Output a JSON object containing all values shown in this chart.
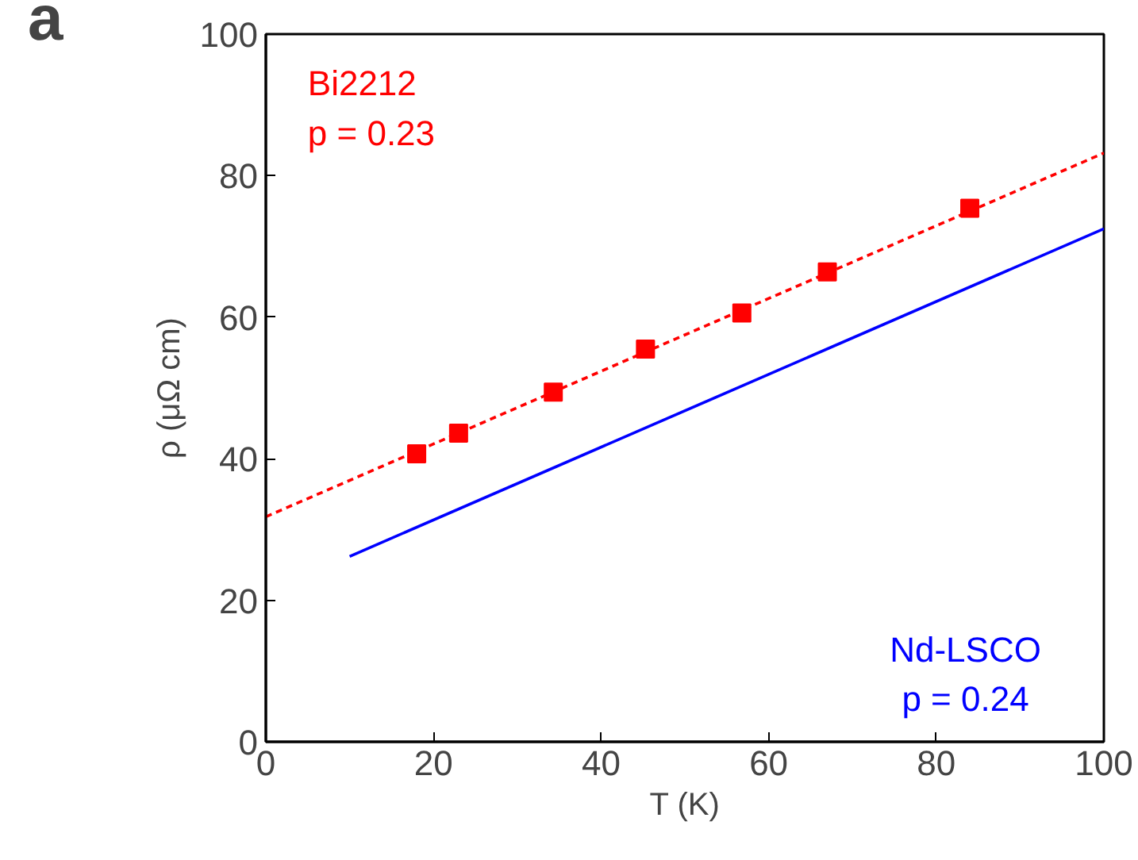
{
  "chart_data": {
    "type": "scatter",
    "xlabel": "T (K)",
    "ylabel": "ρ (μΩ cm)",
    "annotations": [
      "a"
    ],
    "series": [
      {
        "name": "Bi2212\np = 0.23",
        "color": "#ff0000",
        "marker": "square",
        "x": [
          18,
          23,
          34.3,
          45.3,
          56.8,
          67,
          84
        ],
        "values": [
          40.7,
          43.6,
          49.4,
          55.5,
          60.6,
          66.4,
          75.4
        ]
      },
      {
        "type": "line",
        "color": "#ff0000",
        "line_style": "dashed",
        "x": [
          0,
          100
        ],
        "values": [
          31.8,
          83.2
        ]
      },
      {
        "name": "Nd-LSCO\np = 0.24",
        "type": "line",
        "color": "#0000ff",
        "line_style": "solid",
        "x": [
          10,
          100
        ],
        "values": [
          26.2,
          72.5
        ]
      }
    ],
    "xlim": [
      0,
      100
    ],
    "ylim": [
      0,
      100
    ],
    "xticks": [
      0,
      20,
      40,
      60,
      80,
      100
    ],
    "yticks": [
      0,
      20,
      40,
      60,
      80,
      100
    ],
    "grid": false
  }
}
